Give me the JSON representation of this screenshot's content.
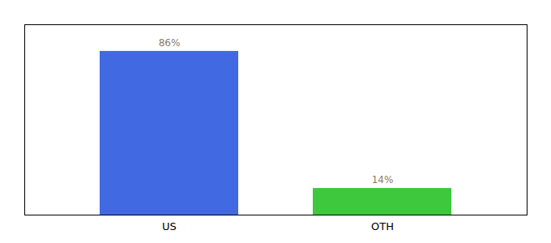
{
  "chart_data": {
    "type": "bar",
    "categories": [
      "US",
      "OTH"
    ],
    "values": [
      86,
      14
    ],
    "value_labels": [
      "86%",
      "14%"
    ],
    "colors": [
      "#4169e1",
      "#3dc83d"
    ],
    "ylim": [
      0,
      100
    ],
    "yticks": [],
    "data_labels": true,
    "tick_labels": "x"
  }
}
